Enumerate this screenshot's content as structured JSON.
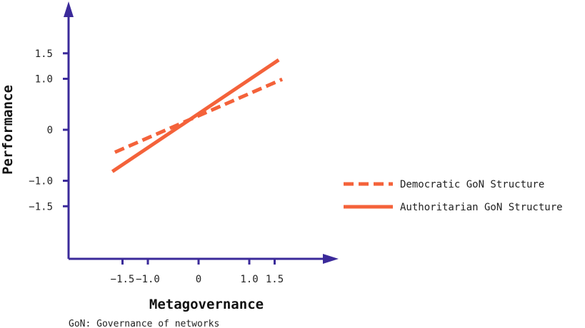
{
  "chart_data": {
    "type": "line",
    "xlabel": "Metagovernance",
    "ylabel": "Performance",
    "xlim": [
      -1.75,
      1.75
    ],
    "ylim": [
      -1.75,
      1.75
    ],
    "x_ticks": [
      {
        "value": -1.5,
        "label": "−1.5"
      },
      {
        "value": -1.0,
        "label": "−1.0"
      },
      {
        "value": 0,
        "label": "0"
      },
      {
        "value": 1.0,
        "label": "1.0"
      },
      {
        "value": 1.5,
        "label": "1.5"
      }
    ],
    "y_ticks": [
      {
        "value": 1.5,
        "label": "1.5"
      },
      {
        "value": 1.0,
        "label": "1.0"
      },
      {
        "value": 0,
        "label": "0"
      },
      {
        "value": -1.0,
        "label": "−1.0"
      },
      {
        "value": -1.5,
        "label": "−1.5"
      }
    ],
    "series": [
      {
        "name": "Democratic GoN Structure",
        "style": "dashed",
        "x": [
          -1.65,
          1.65
        ],
        "y": [
          -0.44,
          0.99
        ]
      },
      {
        "name": "Authoritarian GoN Structure",
        "style": "solid",
        "x": [
          -1.7,
          1.58
        ],
        "y": [
          -0.82,
          1.37
        ]
      }
    ],
    "line_color": "#f4623a",
    "axis_color": "#3b2a9a",
    "legend_position": "right",
    "grid": false,
    "footnote": "GoN: Governance of networks"
  }
}
